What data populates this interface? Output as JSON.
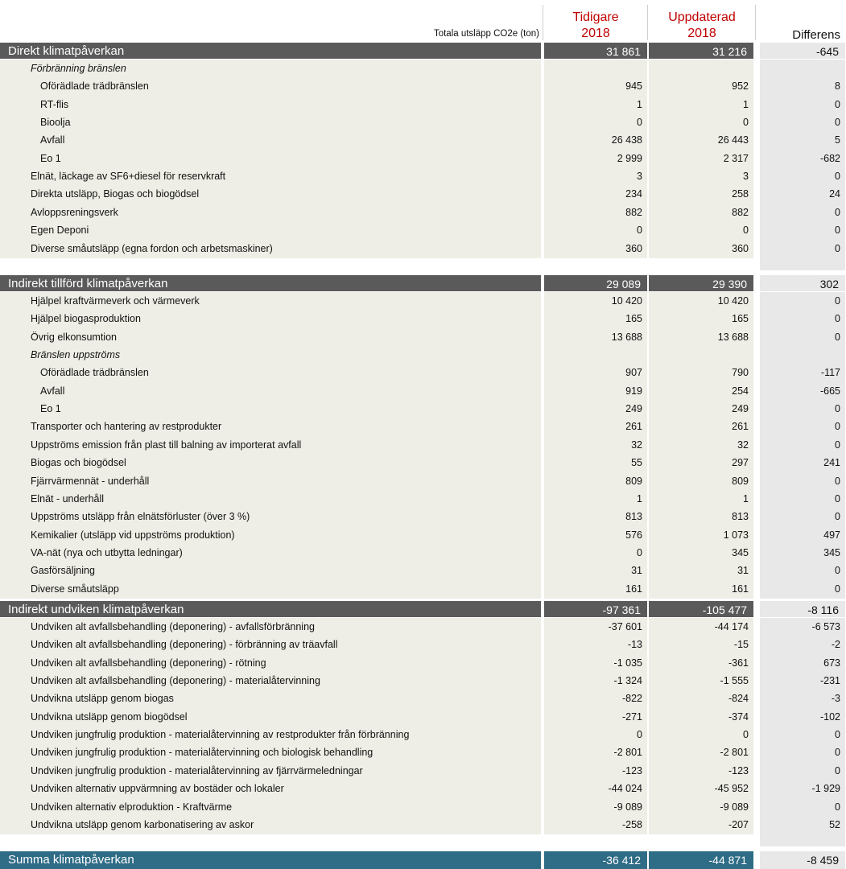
{
  "header": {
    "total_label": "Totala utsläpp CO2e (ton)",
    "col1_line1": "Tidigare",
    "col1_line2": "2018",
    "col2_line1": "Uppdaterad",
    "col2_line2": "2018",
    "col3": "Differens"
  },
  "colors": {
    "header_text": "#c00000",
    "section_dark": "#5a5a5a",
    "summary_teal": "#2f6c86",
    "row_beige": "#eeeee6",
    "diff_gray": "#e8e8e8"
  },
  "sections": [
    {
      "title": "Direkt klimatpåverkan",
      "tidigare": "31 861",
      "uppdaterad": "31 216",
      "differens": "-645",
      "rows": [
        {
          "label": "Förbränning bränslen",
          "indent": 1,
          "italic": true,
          "tidigare": "",
          "uppdaterad": "",
          "differens": ""
        },
        {
          "label": "Oförädlade trädbränslen",
          "indent": 2,
          "tidigare": "945",
          "uppdaterad": "952",
          "differens": "8"
        },
        {
          "label": "RT-flis",
          "indent": 2,
          "tidigare": "1",
          "uppdaterad": "1",
          "differens": "0"
        },
        {
          "label": "Bioolja",
          "indent": 2,
          "tidigare": "0",
          "uppdaterad": "0",
          "differens": "0"
        },
        {
          "label": "Avfall",
          "indent": 2,
          "tidigare": "26 438",
          "uppdaterad": "26 443",
          "differens": "5"
        },
        {
          "label": "Eo 1",
          "indent": 2,
          "tidigare": "2 999",
          "uppdaterad": "2 317",
          "differens": "-682"
        },
        {
          "label": "Elnät, läckage av SF6+diesel för reservkraft",
          "indent": 1,
          "tidigare": "3",
          "uppdaterad": "3",
          "differens": "0"
        },
        {
          "label": "Direkta utsläpp, Biogas och biogödsel",
          "indent": 1,
          "tidigare": "234",
          "uppdaterad": "258",
          "differens": "24"
        },
        {
          "label": "Avloppsreningsverk",
          "indent": 1,
          "tidigare": "882",
          "uppdaterad": "882",
          "differens": "0"
        },
        {
          "label": "Egen Deponi",
          "indent": 1,
          "tidigare": "0",
          "uppdaterad": "0",
          "differens": "0"
        },
        {
          "label": "Diverse småutsläpp (egna fordon och arbetsmaskiner)",
          "indent": 1,
          "tidigare": "360",
          "uppdaterad": "360",
          "differens": "0"
        }
      ]
    },
    {
      "title": "Indirekt tillförd klimatpåverkan",
      "tidigare": "29 089",
      "uppdaterad": "29 390",
      "differens": "302",
      "rows": [
        {
          "label": "Hjälpel kraftvärmeverk och värmeverk",
          "indent": 1,
          "tidigare": "10 420",
          "uppdaterad": "10 420",
          "differens": "0"
        },
        {
          "label": "Hjälpel biogasproduktion",
          "indent": 1,
          "tidigare": "165",
          "uppdaterad": "165",
          "differens": "0"
        },
        {
          "label": "Övrig elkonsumtion",
          "indent": 1,
          "tidigare": "13 688",
          "uppdaterad": "13 688",
          "differens": "0"
        },
        {
          "label": "Bränslen uppströms",
          "indent": 1,
          "italic": true,
          "tidigare": "",
          "uppdaterad": "",
          "differens": ""
        },
        {
          "label": "Oförädlade trädbränslen",
          "indent": 2,
          "tidigare": "907",
          "uppdaterad": "790",
          "differens": "-117"
        },
        {
          "label": "Avfall",
          "indent": 2,
          "tidigare": "919",
          "uppdaterad": "254",
          "differens": "-665"
        },
        {
          "label": "Eo 1",
          "indent": 2,
          "tidigare": "249",
          "uppdaterad": "249",
          "differens": "0"
        },
        {
          "label": "Transporter och hantering av restprodukter",
          "indent": 1,
          "tidigare": "261",
          "uppdaterad": "261",
          "differens": "0"
        },
        {
          "label": "Uppströms emission från plast till balning av importerat avfall",
          "indent": 1,
          "tidigare": "32",
          "uppdaterad": "32",
          "differens": "0"
        },
        {
          "label": "Biogas och biogödsel",
          "indent": 1,
          "tidigare": "55",
          "uppdaterad": "297",
          "differens": "241"
        },
        {
          "label": "Fjärrvärmennät - underhåll",
          "indent": 1,
          "tidigare": "809",
          "uppdaterad": "809",
          "differens": "0"
        },
        {
          "label": "Elnät - underhåll",
          "indent": 1,
          "tidigare": "1",
          "uppdaterad": "1",
          "differens": "0"
        },
        {
          "label": "Uppströms utsläpp från elnätsförluster (över 3 %)",
          "indent": 1,
          "tidigare": "813",
          "uppdaterad": "813",
          "differens": "0"
        },
        {
          "label": "Kemikalier (utsläpp vid uppströms produktion)",
          "indent": 1,
          "tidigare": "576",
          "uppdaterad": "1 073",
          "differens": "497"
        },
        {
          "label": "VA-nät (nya och utbytta ledningar)",
          "indent": 1,
          "tidigare": "0",
          "uppdaterad": "345",
          "differens": "345"
        },
        {
          "label": "Gasförsäljning",
          "indent": 1,
          "tidigare": "31",
          "uppdaterad": "31",
          "differens": "0"
        },
        {
          "label": "Diverse småutsläpp",
          "indent": 1,
          "tidigare": "161",
          "uppdaterad": "161",
          "differens": "0"
        }
      ]
    },
    {
      "title": "Indirekt undviken klimatpåverkan",
      "tidigare": "-97 361",
      "uppdaterad": "-105 477",
      "differens": "-8 116",
      "rows": [
        {
          "label": "Undviken alt avfallsbehandling (deponering) - avfallsförbränning",
          "indent": 1,
          "tidigare": "-37 601",
          "uppdaterad": "-44 174",
          "differens": "-6 573"
        },
        {
          "label": "Undviken alt avfallsbehandling (deponering) - förbränning av träavfall",
          "indent": 1,
          "tidigare": "-13",
          "uppdaterad": "-15",
          "differens": "-2"
        },
        {
          "label": "Undviken alt avfallsbehandling (deponering) - rötning",
          "indent": 1,
          "tidigare": "-1 035",
          "uppdaterad": "-361",
          "differens": "673"
        },
        {
          "label": "Undviken alt avfallsbehandling (deponering) - materialåtervinning",
          "indent": 1,
          "tidigare": "-1 324",
          "uppdaterad": "-1 555",
          "differens": "-231"
        },
        {
          "label": "Undvikna utsläpp genom biogas",
          "indent": 1,
          "tidigare": "-822",
          "uppdaterad": "-824",
          "differens": "-3"
        },
        {
          "label": "Undvikna utsläpp genom biogödsel",
          "indent": 1,
          "tidigare": "-271",
          "uppdaterad": "-374",
          "differens": "-102"
        },
        {
          "label": "Undviken jungfrulig produktion - materialåtervinning av restprodukter från förbränning",
          "indent": 1,
          "tidigare": "0",
          "uppdaterad": "0",
          "differens": "0"
        },
        {
          "label": "Undviken jungfrulig produktion - materialåtervinning och biologisk behandling",
          "indent": 1,
          "tidigare": "-2 801",
          "uppdaterad": "-2 801",
          "differens": "0"
        },
        {
          "label": "Undviken jungfrulig produktion - materialåtervinning av fjärrvärmeledningar",
          "indent": 1,
          "tidigare": "-123",
          "uppdaterad": "-123",
          "differens": "0"
        },
        {
          "label": "Undviken alternativ uppvärmning av bostäder och lokaler",
          "indent": 1,
          "tidigare": "-44 024",
          "uppdaterad": "-45 952",
          "differens": "-1 929"
        },
        {
          "label": "Undviken alternativ elproduktion - Kraftvärme",
          "indent": 1,
          "tidigare": "-9 089",
          "uppdaterad": "-9 089",
          "differens": "0"
        },
        {
          "label": "Undvikna utsläpp genom karbonatisering av askor",
          "indent": 1,
          "tidigare": "-258",
          "uppdaterad": "-207",
          "differens": "52"
        }
      ]
    }
  ],
  "summary": {
    "title": "Summa klimatpåverkan",
    "tidigare": "-36 412",
    "uppdaterad": "-44 871",
    "differens": "-8 459"
  }
}
